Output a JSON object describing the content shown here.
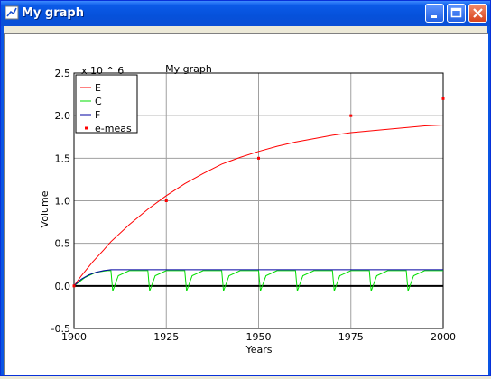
{
  "window": {
    "title": "My graph"
  },
  "chart_data": {
    "type": "line",
    "title": "My graph",
    "xlabel": "Years",
    "ylabel": "Volume",
    "y_multiplier": "x 10 ^ 6",
    "xlim": [
      1900,
      2000
    ],
    "ylim": [
      -0.5,
      2.5
    ],
    "x_ticks": [
      "1900",
      "1925",
      "1950",
      "1975",
      "2000"
    ],
    "y_ticks": [
      "-0.5",
      "0.0",
      "0.5",
      "1.0",
      "1.5",
      "2.0",
      "2.5"
    ],
    "x_tick_values": [
      1900,
      1925,
      1950,
      1975,
      2000
    ],
    "y_tick_values": [
      -0.5,
      0.0,
      0.5,
      1.0,
      1.5,
      2.0,
      2.5
    ],
    "grid": true,
    "legend_position": "top-left",
    "series": [
      {
        "name": "E",
        "color": "#ff0000",
        "style": "line",
        "x": [
          1900,
          1902,
          1905,
          1908,
          1910,
          1915,
          1920,
          1925,
          1930,
          1935,
          1940,
          1945,
          1950,
          1955,
          1960,
          1965,
          1970,
          1975,
          1980,
          1985,
          1990,
          1995,
          2000
        ],
        "y": [
          0.0,
          0.12,
          0.28,
          0.42,
          0.52,
          0.72,
          0.9,
          1.06,
          1.2,
          1.32,
          1.43,
          1.51,
          1.58,
          1.64,
          1.69,
          1.73,
          1.77,
          1.8,
          1.82,
          1.84,
          1.86,
          1.88,
          1.89
        ]
      },
      {
        "name": "C",
        "color": "#00dd00",
        "style": "line",
        "x": [
          1900,
          1903,
          1906,
          1909,
          1910,
          1910.5,
          1912,
          1915,
          1920,
          1920.5,
          1922,
          1925,
          1930,
          1930.5,
          1932,
          1935,
          1940,
          1940.5,
          1942,
          1945,
          1950,
          1950.5,
          1952,
          1955,
          1960,
          1960.5,
          1962,
          1965,
          1970,
          1970.5,
          1972,
          1975,
          1980,
          1980.5,
          1982,
          1985,
          1990,
          1990.5,
          1992,
          1995,
          2000
        ],
        "y": [
          0.0,
          0.1,
          0.16,
          0.18,
          0.18,
          -0.06,
          0.12,
          0.18,
          0.18,
          -0.06,
          0.12,
          0.18,
          0.18,
          -0.06,
          0.12,
          0.18,
          0.18,
          -0.06,
          0.12,
          0.18,
          0.18,
          -0.06,
          0.12,
          0.18,
          0.18,
          -0.06,
          0.12,
          0.18,
          0.18,
          -0.06,
          0.12,
          0.18,
          0.18,
          -0.06,
          0.12,
          0.18,
          0.18,
          -0.06,
          0.12,
          0.18,
          0.18
        ]
      },
      {
        "name": "F",
        "color": "#0000a0",
        "style": "line",
        "x": [
          1900,
          1902,
          1904,
          1906,
          1908,
          1910,
          1920,
          1930,
          1940,
          1950,
          1960,
          1970,
          1980,
          1990,
          2000
        ],
        "y": [
          0.0,
          0.08,
          0.13,
          0.16,
          0.18,
          0.19,
          0.19,
          0.19,
          0.19,
          0.19,
          0.19,
          0.19,
          0.19,
          0.19,
          0.19
        ]
      },
      {
        "name": "e-meas",
        "color": "#ff0000",
        "style": "points",
        "x": [
          1900,
          1925,
          1950,
          1975,
          2000
        ],
        "y": [
          0.0,
          1.0,
          1.5,
          2.0,
          2.2
        ]
      }
    ],
    "baseline": {
      "y": 0.0,
      "color": "#000000"
    }
  }
}
